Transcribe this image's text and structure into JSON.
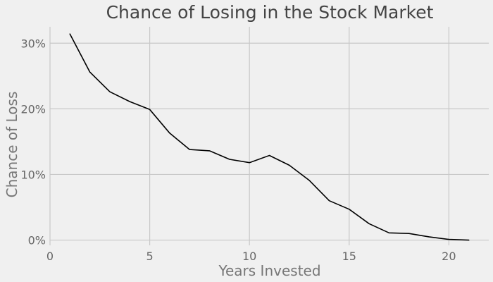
{
  "chart_data": {
    "type": "line",
    "title": "Chance of Losing in the Stock Market",
    "xlabel": "Years Invested",
    "ylabel": "Chance of Loss",
    "xlim": [
      0,
      22
    ],
    "ylim": [
      -0.8,
      32.5
    ],
    "xticks": [
      0,
      5,
      10,
      15,
      20
    ],
    "xtick_labels": [
      "0",
      "5",
      "10",
      "15",
      "20"
    ],
    "yticks": [
      0,
      10,
      20,
      30
    ],
    "ytick_labels": [
      "0%",
      "10%",
      "20%",
      "30%"
    ],
    "grid": true,
    "line_color": "#000000",
    "series": [
      {
        "x": [
          1,
          2,
          3,
          4,
          5,
          6,
          7,
          8,
          9,
          10,
          11,
          12,
          13,
          14,
          15,
          16,
          17,
          18,
          19,
          20,
          21
        ],
        "values": [
          31.4,
          25.6,
          22.6,
          21.1,
          19.9,
          16.3,
          13.8,
          13.6,
          12.3,
          11.8,
          12.9,
          11.4,
          9.1,
          6.0,
          4.7,
          2.5,
          1.1,
          1.0,
          0.5,
          0.1,
          0.0
        ]
      }
    ]
  }
}
